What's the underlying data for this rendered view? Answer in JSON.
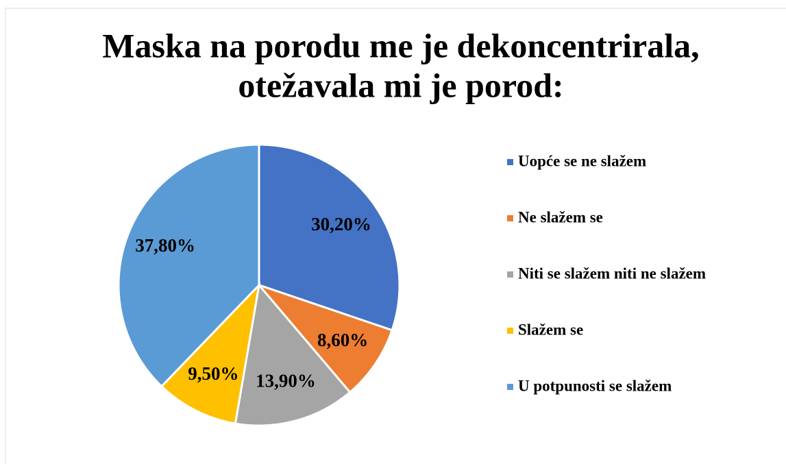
{
  "chart_data": {
    "type": "pie",
    "title": [
      "Maska na porodu me je dekoncentrirala,",
      "otežavala mi je porod:"
    ],
    "categories": [
      "Uopće se ne slažem",
      "Ne slažem se",
      "Niti se slažem niti ne slažem",
      "Slažem se",
      "U potpunosti se slažem"
    ],
    "values": [
      30.2,
      8.6,
      13.9,
      9.5,
      37.8
    ],
    "value_labels": [
      "30,20%",
      "8,60%",
      "13,90%",
      "9,50%",
      "37,80%"
    ],
    "colors": [
      "#4472c4",
      "#ed7d31",
      "#a5a5a5",
      "#ffc000",
      "#5b9bd5"
    ],
    "legend": "right"
  }
}
